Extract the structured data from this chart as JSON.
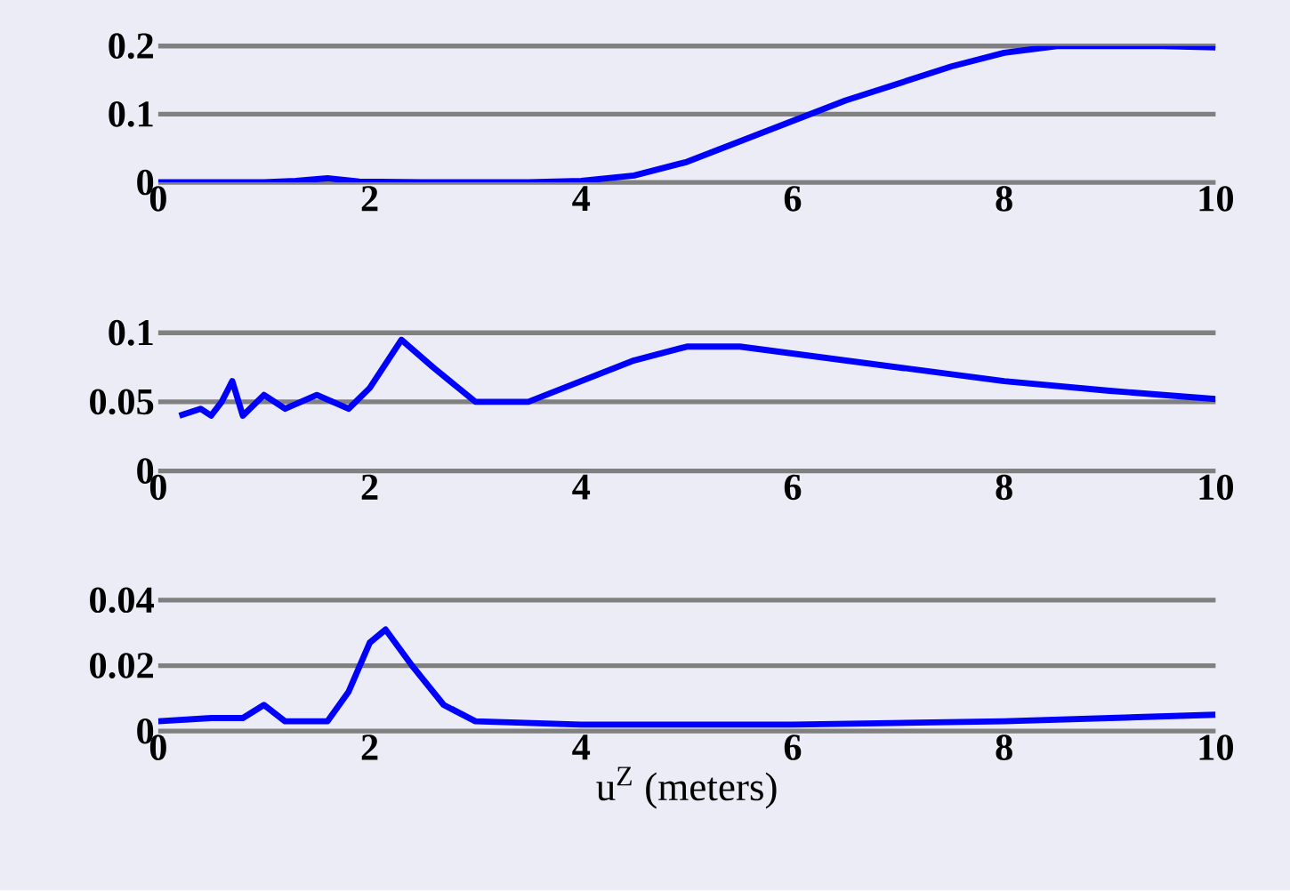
{
  "chart_data": [
    {
      "type": "line",
      "x": [
        0,
        0.5,
        1.0,
        1.3,
        1.6,
        1.9,
        2.5,
        3.0,
        3.5,
        4.0,
        4.5,
        5.0,
        5.5,
        6.0,
        6.5,
        7.0,
        7.5,
        8.0,
        8.5,
        9.0,
        9.5,
        10.0
      ],
      "series": [
        {
          "color": "#0000ff",
          "values": [
            0,
            0,
            0,
            0.002,
            0.006,
            0.001,
            0,
            0,
            0,
            0.002,
            0.01,
            0.03,
            0.06,
            0.09,
            0.12,
            0.145,
            0.17,
            0.19,
            0.2,
            0.2,
            0.2,
            0.198
          ]
        }
      ],
      "xlim": [
        0,
        10
      ],
      "ylim": [
        0,
        0.2
      ],
      "xticks": [
        0,
        2,
        4,
        6,
        8,
        10
      ],
      "yticks": [
        0,
        0.1,
        0.2
      ],
      "grid": "y"
    },
    {
      "type": "line",
      "x": [
        0.2,
        0.4,
        0.5,
        0.6,
        0.7,
        0.8,
        1.0,
        1.2,
        1.5,
        1.8,
        2.0,
        2.3,
        2.6,
        3.0,
        3.5,
        4.0,
        4.5,
        5.0,
        5.5,
        6.0,
        7.0,
        8.0,
        9.0,
        10.0
      ],
      "series": [
        {
          "color": "#0000ff",
          "values": [
            0.04,
            0.045,
            0.04,
            0.05,
            0.065,
            0.04,
            0.055,
            0.045,
            0.055,
            0.045,
            0.06,
            0.095,
            0.075,
            0.05,
            0.05,
            0.065,
            0.08,
            0.09,
            0.09,
            0.085,
            0.075,
            0.065,
            0.058,
            0.052
          ]
        }
      ],
      "xlim": [
        0,
        10
      ],
      "ylim": [
        0,
        0.1
      ],
      "xticks": [
        0,
        2,
        4,
        6,
        8,
        10
      ],
      "yticks": [
        0,
        0.05,
        0.1
      ],
      "grid": "y"
    },
    {
      "type": "line",
      "xlabel": "u$^{Z}$ (meters)",
      "x": [
        0,
        0.5,
        0.8,
        1.0,
        1.2,
        1.6,
        1.8,
        2.0,
        2.15,
        2.4,
        2.7,
        3.0,
        4.0,
        6.0,
        8.0,
        10.0
      ],
      "series": [
        {
          "color": "#0000ff",
          "values": [
            0.003,
            0.004,
            0.004,
            0.008,
            0.003,
            0.003,
            0.012,
            0.027,
            0.031,
            0.02,
            0.008,
            0.003,
            0.002,
            0.002,
            0.003,
            0.005
          ]
        }
      ],
      "xlim": [
        0,
        10
      ],
      "ylim": [
        0,
        0.04
      ],
      "xticks": [
        0,
        2,
        4,
        6,
        8,
        10
      ],
      "yticks": [
        0,
        0.02,
        0.04
      ],
      "grid": "y"
    }
  ]
}
